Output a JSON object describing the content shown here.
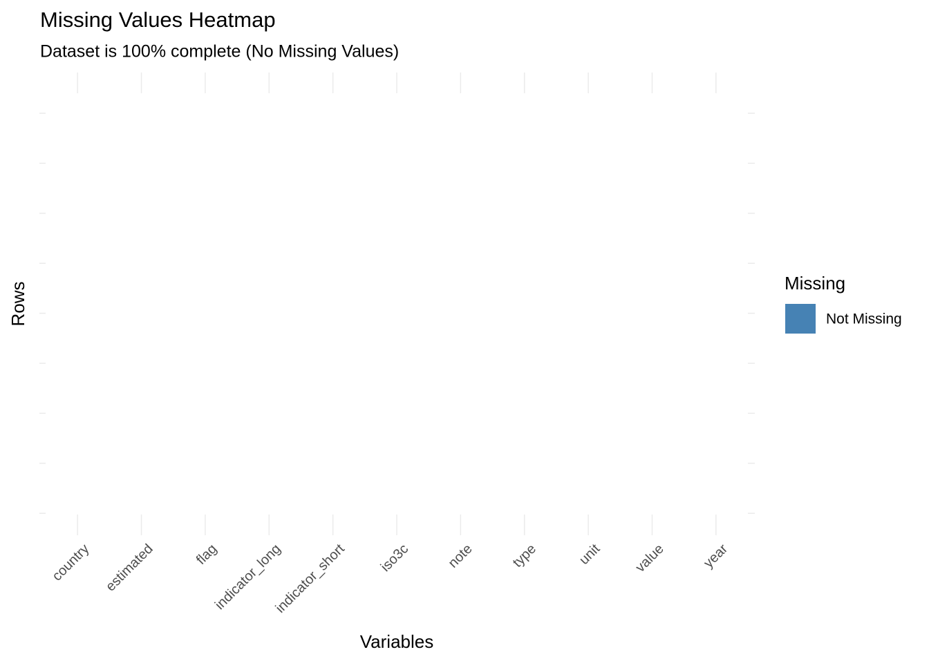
{
  "chart_data": {
    "type": "heatmap",
    "title": "Missing Values Heatmap",
    "subtitle": "Dataset is 100% complete (No Missing Values)",
    "x_label": "Variables",
    "y_label": "Rows",
    "categories": [
      "country",
      "estimated",
      "flag",
      "indicator_long",
      "indicator_short",
      "iso3c",
      "note",
      "type",
      "unit",
      "value",
      "year"
    ],
    "legend_title": "Missing",
    "series": [
      {
        "name": "Not Missing",
        "color": "#4682b4"
      }
    ],
    "grid": true
  }
}
